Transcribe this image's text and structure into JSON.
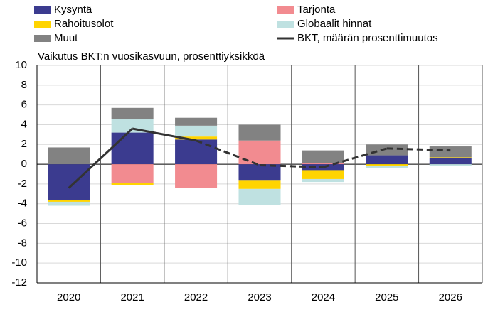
{
  "chart_data": {
    "type": "stacked_bar_line",
    "subtitle": "Vaikutus BKT:n vuosikasvuun, prosenttiyksikköä",
    "categories": [
      "2020",
      "2021",
      "2022",
      "2023",
      "2024",
      "2025",
      "2026"
    ],
    "series": [
      {
        "name": "Kysyntä",
        "color": "#3b3b8f",
        "values": [
          -3.6,
          3.2,
          2.5,
          -1.6,
          -0.6,
          0.9,
          0.6
        ]
      },
      {
        "name": "Tarjonta",
        "color": "#f28b90",
        "values": [
          0,
          -1.9,
          -2.4,
          2.4,
          0.1,
          0,
          0
        ]
      },
      {
        "name": "Rahoitusolot",
        "color": "#ffd400",
        "values": [
          -0.2,
          -0.2,
          0.3,
          -0.9,
          -0.9,
          -0.2,
          0.1
        ]
      },
      {
        "name": "Globaalit hinnat",
        "color": "#bfe1e1",
        "values": [
          -0.4,
          1.4,
          1.1,
          -1.6,
          -0.3,
          -0.2,
          -0.2
        ]
      },
      {
        "name": "Muut",
        "color": "#828282",
        "values": [
          1.7,
          1.1,
          0.8,
          1.6,
          1.3,
          1.1,
          1.1
        ]
      },
      {
        "name": "BKT, määrän prosenttimuutos",
        "color": "#333333",
        "type": "line",
        "values": [
          -2.4,
          3.6,
          2.4,
          -0.1,
          -0.3,
          1.6,
          1.4
        ],
        "segment_styles": [
          "solid",
          "solid",
          "dashed",
          "dashed",
          "dashed",
          "dashed"
        ]
      }
    ],
    "ylim": [
      -12,
      10
    ],
    "yticks": [
      -12,
      -10,
      -8,
      -6,
      -4,
      -2,
      0,
      2,
      4,
      6,
      8,
      10
    ],
    "grid": true
  }
}
